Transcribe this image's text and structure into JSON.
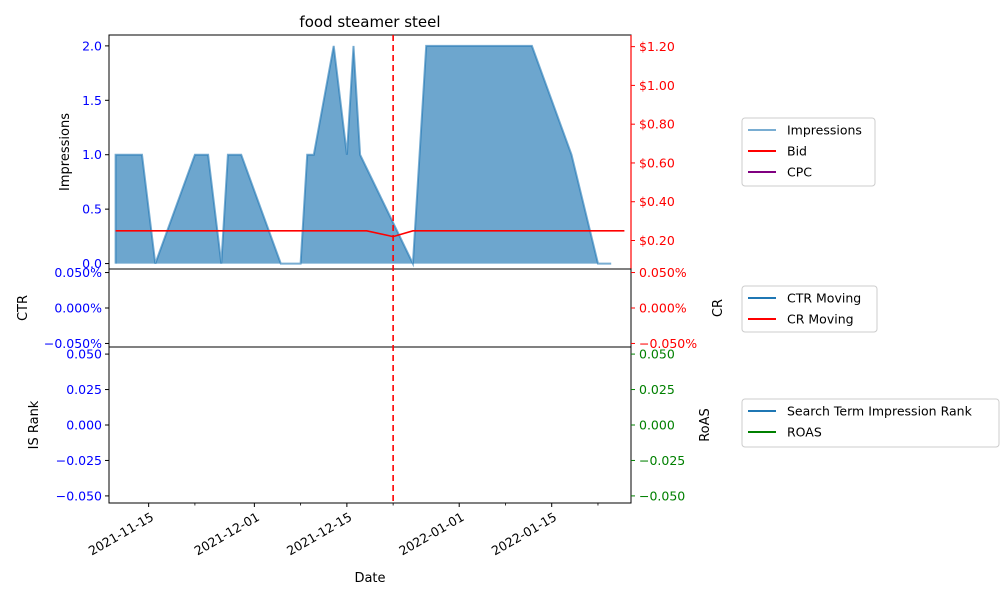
{
  "chart_data": {
    "type": "line",
    "title": "food steamer steel",
    "xlabel": "Date",
    "x_ticks": [
      "2021-11-15",
      "2021-12-01",
      "2021-12-15",
      "2022-01-01",
      "2022-01-15"
    ],
    "x_range": [
      "2021-11-09",
      "2022-01-27"
    ],
    "marker_date": "2021-12-22",
    "panels": [
      {
        "id": "top",
        "left_label": "Impressions",
        "right_label": "",
        "left_ticks": [
          "0.0",
          "0.5",
          "1.0",
          "1.5",
          "2.0"
        ],
        "left_tick_values": [
          0,
          0.5,
          1.0,
          1.5,
          2.0
        ],
        "left_range": [
          -0.05,
          2.1
        ],
        "right_ticks": [
          "$0.20",
          "$0.40",
          "$0.60",
          "$0.80",
          "$1.00",
          "$1.20"
        ],
        "right_tick_values": [
          0.2,
          0.4,
          0.6,
          0.8,
          1.0,
          1.2
        ],
        "right_range": [
          0.053,
          1.26
        ],
        "legend": [
          "Impressions",
          "Bid",
          "CPC"
        ],
        "series": [
          {
            "name": "Impressions",
            "axis": "left",
            "kind": "area",
            "color": "#1f77b4",
            "points": [
              [
                "2021-11-10",
                0
              ],
              [
                "2021-11-10",
                1
              ],
              [
                "2021-11-14",
                1
              ],
              [
                "2021-11-16",
                0
              ],
              [
                "2021-11-22",
                1
              ],
              [
                "2021-11-24",
                1
              ],
              [
                "2021-11-26",
                0
              ],
              [
                "2021-11-27",
                1
              ],
              [
                "2021-11-29",
                1
              ],
              [
                "2021-12-05",
                0
              ],
              [
                "2021-12-08",
                0
              ],
              [
                "2021-12-09",
                1
              ],
              [
                "2021-12-10",
                1
              ],
              [
                "2021-12-13",
                2
              ],
              [
                "2021-12-15",
                1
              ],
              [
                "2021-12-16",
                2
              ],
              [
                "2021-12-17",
                1
              ],
              [
                "2021-12-21",
                0.5
              ],
              [
                "2021-12-25",
                0
              ],
              [
                "2021-12-27",
                2
              ],
              [
                "2022-01-12",
                2
              ],
              [
                "2022-01-18",
                1
              ],
              [
                "2022-01-22",
                0
              ],
              [
                "2022-01-24",
                0
              ]
            ]
          },
          {
            "name": "Bid",
            "axis": "right",
            "kind": "line",
            "color": "#ff0000",
            "points": [
              [
                "2021-11-10",
                0.25
              ],
              [
                "2021-12-18",
                0.25
              ],
              [
                "2021-12-22",
                0.22
              ],
              [
                "2021-12-25",
                0.25
              ],
              [
                "2022-01-26",
                0.25
              ]
            ]
          },
          {
            "name": "CPC",
            "axis": "right",
            "kind": "line",
            "color": "#800080",
            "points": []
          }
        ]
      },
      {
        "id": "middle",
        "left_label": "CTR",
        "right_label": "CR",
        "left_ticks": [
          "0.050%",
          "0.000%",
          "−0.050%"
        ],
        "left_tick_values": [
          0.05,
          0,
          -0.05
        ],
        "left_range": [
          -0.055,
          0.055
        ],
        "right_ticks": [
          "0.050%",
          "0.000%",
          "−0.050%"
        ],
        "right_tick_values": [
          0.05,
          0,
          -0.05
        ],
        "right_range": [
          -0.055,
          0.055
        ],
        "legend": [
          "CTR Moving",
          "CR Moving"
        ],
        "series": [
          {
            "name": "CTR Moving",
            "axis": "left",
            "kind": "line",
            "color": "#1f77b4",
            "points": []
          },
          {
            "name": "CR Moving",
            "axis": "right",
            "kind": "line",
            "color": "#ff0000",
            "points": []
          }
        ]
      },
      {
        "id": "bottom",
        "left_label": "IS Rank",
        "right_label": "RoAS",
        "left_ticks": [
          "0.050",
          "0.025",
          "0.000",
          "−0.025",
          "−0.050"
        ],
        "left_tick_values": [
          0.05,
          0.025,
          0,
          -0.025,
          -0.05
        ],
        "left_range": [
          -0.055,
          0.055
        ],
        "right_ticks": [
          "0.050",
          "0.025",
          "0.000",
          "−0.025",
          "−0.050"
        ],
        "right_tick_values": [
          0.05,
          0.025,
          0,
          -0.025,
          -0.05
        ],
        "right_range": [
          -0.055,
          0.055
        ],
        "legend": [
          "Search Term Impression Rank",
          "ROAS"
        ],
        "series": [
          {
            "name": "Search Term Impression Rank",
            "axis": "left",
            "kind": "line",
            "color": "#1f77b4",
            "points": []
          },
          {
            "name": "ROAS",
            "axis": "right",
            "kind": "line",
            "color": "#008000",
            "points": []
          }
        ]
      }
    ],
    "colors": {
      "left_axis": "#0000ff",
      "right_axis_top": "#ff0000",
      "right_axis_middle": "#ff0000",
      "right_axis_bottom": "#008000",
      "marker": "#ff0000"
    }
  }
}
